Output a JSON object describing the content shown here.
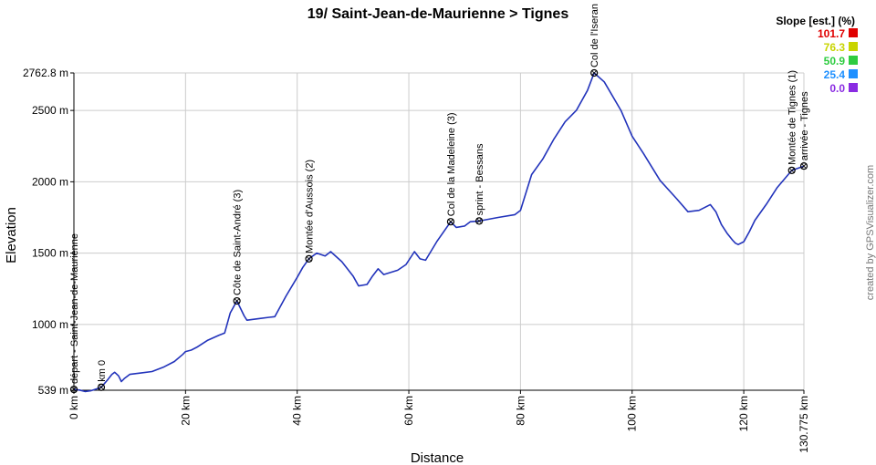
{
  "chart_data": {
    "type": "line",
    "title": "19/ Saint-Jean-de-Maurienne > Tignes",
    "xlabel": "Distance",
    "ylabel": "Elevation",
    "xlim": [
      0,
      130.775
    ],
    "ylim": [
      539,
      2762.8
    ],
    "x_ticks": [
      {
        "value": 0,
        "label": "0 km"
      },
      {
        "value": 20,
        "label": "20 km"
      },
      {
        "value": 40,
        "label": "40 km"
      },
      {
        "value": 60,
        "label": "60 km"
      },
      {
        "value": 80,
        "label": "80 km"
      },
      {
        "value": 100,
        "label": "100 km"
      },
      {
        "value": 120,
        "label": "120 km"
      },
      {
        "value": 130.775,
        "label": "130.775 km"
      }
    ],
    "y_ticks": [
      {
        "value": 539,
        "label": "539 m"
      },
      {
        "value": 1000,
        "label": "1000 m"
      },
      {
        "value": 1500,
        "label": "1500 m"
      },
      {
        "value": 2000,
        "label": "2000 m"
      },
      {
        "value": 2500,
        "label": "2500 m"
      },
      {
        "value": 2762.8,
        "label": "2762.8 m"
      }
    ],
    "grid": true,
    "x": [
      0,
      1,
      2,
      3,
      4,
      4.9,
      6,
      6.8,
      7.3,
      8,
      8.5,
      9,
      10,
      12,
      14,
      16,
      18,
      19.5,
      20,
      21,
      22,
      24,
      26,
      27,
      28,
      29.2,
      30.5,
      31,
      33,
      35,
      36,
      38,
      40,
      41,
      42.1,
      43.5,
      45,
      46,
      48,
      50,
      51,
      52.5,
      53.5,
      54.5,
      55.5,
      58,
      59.5,
      61,
      62,
      63,
      65,
      67.5,
      68.5,
      70,
      71,
      72.6,
      76,
      79,
      80,
      82,
      84,
      86,
      88,
      90,
      92,
      93.2,
      95,
      98,
      100,
      102,
      105,
      108,
      110,
      112,
      114,
      115,
      116,
      117,
      118,
      118.5,
      119,
      120,
      121,
      122,
      124,
      126,
      128.6,
      130.775
    ],
    "elevation": [
      545,
      540,
      530,
      535,
      548,
      560,
      610,
      650,
      665,
      640,
      600,
      620,
      650,
      660,
      670,
      700,
      740,
      790,
      810,
      820,
      840,
      890,
      925,
      940,
      1080,
      1165,
      1060,
      1030,
      1040,
      1050,
      1055,
      1200,
      1330,
      1400,
      1460,
      1500,
      1480,
      1510,
      1440,
      1340,
      1270,
      1280,
      1340,
      1390,
      1350,
      1380,
      1420,
      1510,
      1460,
      1450,
      1580,
      1720,
      1680,
      1690,
      1720,
      1725,
      1750,
      1770,
      1800,
      2050,
      2160,
      2300,
      2420,
      2500,
      2640,
      2762.8,
      2700,
      2500,
      2320,
      2200,
      2010,
      1880,
      1790,
      1800,
      1840,
      1790,
      1700,
      1640,
      1590,
      1570,
      1560,
      1580,
      1650,
      1730,
      1840,
      1960,
      2080,
      2110
    ],
    "waypoints": [
      {
        "x": 0,
        "label": "départ - Saint-Jean-de-Maurienne"
      },
      {
        "x": 4.9,
        "label": "km 0"
      },
      {
        "x": 29.2,
        "label": "Côte de Saint-André (3)"
      },
      {
        "x": 42.1,
        "label": "Montée d'Aussois (2)"
      },
      {
        "x": 67.5,
        "label": "Col de la Madeleine (3)"
      },
      {
        "x": 72.6,
        "label": "sprint - Bessans"
      },
      {
        "x": 93.2,
        "label": "Col de l'Iseran"
      },
      {
        "x": 128.6,
        "label": "Montée de Tignes (1)"
      },
      {
        "x": 130.775,
        "label": "arrivée - Tignes"
      }
    ],
    "legend": {
      "title": "Slope [est.] (%)",
      "placement": "top-right",
      "entries": [
        {
          "label": "101.7",
          "color": "#e00000"
        },
        {
          "label": "76.3",
          "color": "#c8d400"
        },
        {
          "label": "50.9",
          "color": "#2ecc40"
        },
        {
          "label": "25.4",
          "color": "#1e90ff"
        },
        {
          "label": "0.0",
          "color": "#8a2be2"
        }
      ]
    },
    "line_color": "#2233bb",
    "grid_color": "#cccccc"
  },
  "credit": "created by GPSVisualizer.com"
}
